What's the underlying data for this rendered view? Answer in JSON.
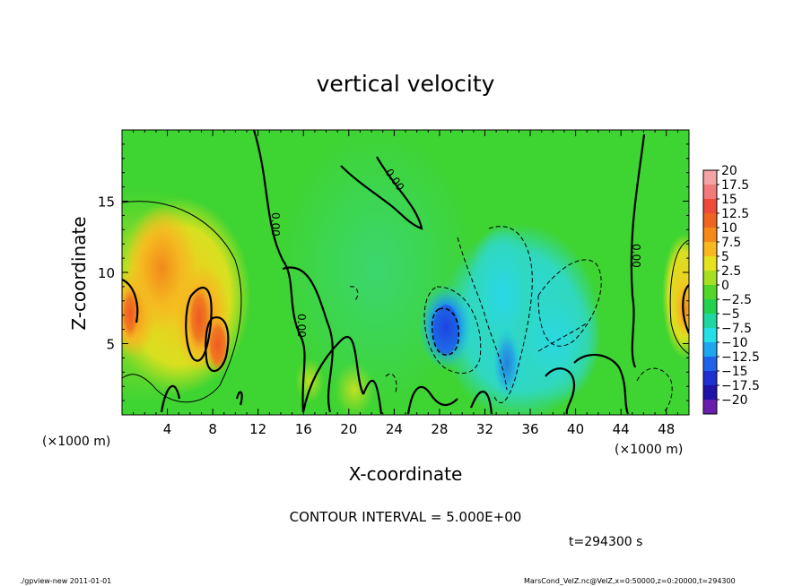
{
  "chart_data": {
    "type": "heatmap",
    "title": "vertical velocity",
    "xlabel": "X-coordinate",
    "ylabel": "Z-coordinate",
    "x_unit_left": "(×1000 m)",
    "x_unit_right": "(×1000 m)",
    "x_ticks": [
      4,
      8,
      12,
      16,
      20,
      24,
      28,
      32,
      36,
      40,
      44,
      48
    ],
    "y_ticks": [
      5,
      10,
      15
    ],
    "xlim": [
      0,
      50
    ],
    "ylim": [
      0,
      20
    ],
    "colorbar_levels": [
      "20",
      "17.5",
      "15",
      "12.5",
      "10",
      "7.5",
      "5",
      "2.5",
      "0",
      "-2.5",
      "-5",
      "-7.5",
      "-10",
      "-12.5",
      "-15",
      "-17.5",
      "-20"
    ],
    "colorbar_colors": [
      "#f6a3a3",
      "#f27a7a",
      "#ee4a3a",
      "#f06420",
      "#f58a18",
      "#f8b820",
      "#e6e21e",
      "#a6e020",
      "#52d62a",
      "#22d24e",
      "#1ed6a0",
      "#22e0e6",
      "#1ea6f0",
      "#1e62ea",
      "#1e30d0",
      "#1e12a8",
      "#6a1eae"
    ],
    "contour_labels": [
      "0.00",
      "0.00",
      "0.00",
      "0.00"
    ],
    "contour_interval_text": "CONTOUR INTERVAL = 5.000E+00",
    "time_text": "t=294300 s"
  },
  "footer": {
    "left": "./gpview-new  2011-01-01",
    "right": "MarsCond_VelZ.nc@VelZ,x=0:50000,z=0:20000,t=294300"
  }
}
